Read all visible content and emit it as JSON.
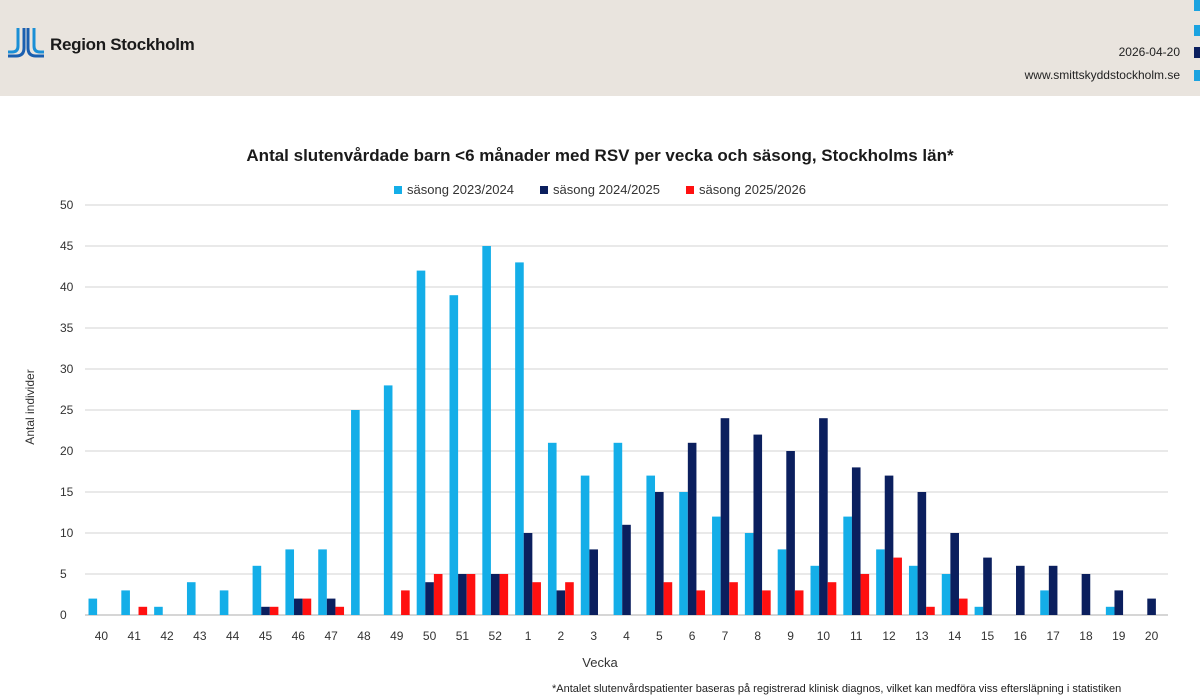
{
  "header": {
    "logo_text": "Region Stockholm",
    "date": "2026-04-20",
    "url": "www.smittskyddstockholm.se"
  },
  "footnote": "*Antalet slutenvårdspatienter baseras på registrerad klinisk diagnos, vilket kan medföra viss eftersläpning i statistiken",
  "chart_data": {
    "type": "bar",
    "title": "Antal slutenvårdade barn <6 månader med RSV per vecka och säsong, Stockholms län*",
    "xlabel": "Vecka",
    "ylabel": "Antal individer",
    "ylim": [
      0,
      50
    ],
    "yticks": [
      0,
      5,
      10,
      15,
      20,
      25,
      30,
      35,
      40,
      45,
      50
    ],
    "grid": true,
    "legend_position": "top",
    "categories": [
      "40",
      "41",
      "42",
      "43",
      "44",
      "45",
      "46",
      "47",
      "48",
      "49",
      "50",
      "51",
      "52",
      "1",
      "2",
      "3",
      "4",
      "5",
      "6",
      "7",
      "8",
      "9",
      "10",
      "11",
      "12",
      "13",
      "14",
      "15",
      "16",
      "17",
      "18",
      "19",
      "20"
    ],
    "series": [
      {
        "name": "säsong 2023/2024",
        "color": "#14aee8",
        "values": [
          2,
          3,
          1,
          4,
          3,
          6,
          8,
          8,
          25,
          28,
          42,
          39,
          45,
          43,
          21,
          17,
          21,
          17,
          15,
          12,
          10,
          8,
          6,
          12,
          8,
          6,
          5,
          1,
          0,
          3,
          0,
          1,
          0
        ]
      },
      {
        "name": "säsong 2024/2025",
        "color": "#0b1f5e",
        "values": [
          0,
          0,
          0,
          0,
          0,
          1,
          2,
          2,
          0,
          0,
          4,
          5,
          5,
          10,
          3,
          8,
          11,
          15,
          21,
          24,
          22,
          20,
          24,
          18,
          17,
          15,
          10,
          7,
          6,
          6,
          5,
          3,
          2
        ]
      },
      {
        "name": "säsong 2025/2026",
        "color": "#ff1010",
        "values": [
          0,
          1,
          0,
          0,
          0,
          1,
          2,
          1,
          0,
          3,
          5,
          5,
          5,
          4,
          4,
          0,
          0,
          4,
          3,
          4,
          3,
          3,
          4,
          5,
          7,
          1,
          2,
          null,
          null,
          null,
          null,
          null,
          null
        ]
      }
    ]
  }
}
